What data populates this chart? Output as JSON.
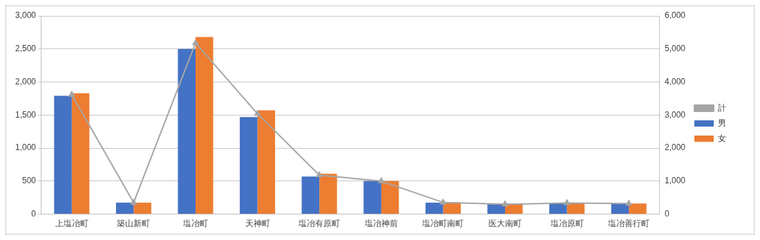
{
  "chart_data": {
    "type": "bar",
    "categories": [
      "上塩冶町",
      "築山新町",
      "塩冶町",
      "天神町",
      "塩冶有原町",
      "塩冶神前",
      "塩冶町南町",
      "医大南町",
      "塩冶原町",
      "塩冶善行町"
    ],
    "series": [
      {
        "name": "男",
        "color": "#4472c4",
        "values": [
          1790,
          175,
          2500,
          1470,
          570,
          500,
          175,
          150,
          165,
          160
        ]
      },
      {
        "name": "女",
        "color": "#ed7d31",
        "values": [
          1830,
          175,
          2680,
          1570,
          610,
          500,
          180,
          150,
          170,
          160
        ]
      },
      {
        "name": "計",
        "type": "line",
        "axis": "y2",
        "color": "#a5a5a5",
        "marker": "triangle",
        "values": [
          3620,
          350,
          5180,
          3040,
          1180,
          1000,
          355,
          300,
          335,
          320
        ]
      }
    ],
    "ylim": [
      0,
      3000
    ],
    "yticks": [
      0,
      {
        "value": 500,
        "label": "500"
      },
      {
        "value": 1000,
        "label": "1,000"
      },
      {
        "value": 1500,
        "label": "1,500"
      },
      {
        "value": 2000,
        "label": "2,000"
      },
      {
        "value": 2500,
        "label": "2,500"
      },
      {
        "value": 3000,
        "label": "3,000"
      }
    ],
    "y2lim": [
      0,
      6000
    ],
    "y2ticks": [
      0,
      {
        "value": 1000,
        "label": "1,000"
      },
      {
        "value": 2000,
        "label": "2,000"
      },
      {
        "value": 3000,
        "label": "3,000"
      },
      {
        "value": 4000,
        "label": "4,000"
      },
      {
        "value": 5000,
        "label": "5,000"
      },
      {
        "value": 6000,
        "label": "6,000"
      }
    ],
    "grid": "y",
    "legend": "right"
  }
}
